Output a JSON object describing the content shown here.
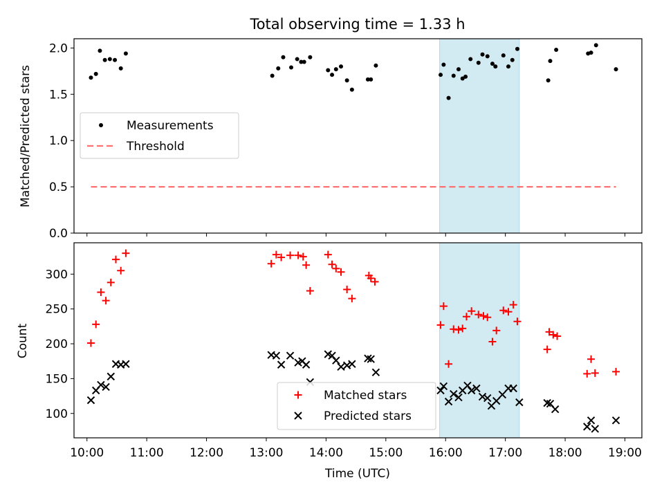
{
  "chart_data": [
    {
      "type": "scatter",
      "title": "Total observing time = 1.33 h",
      "ylabel": "Matched/Predicted stars",
      "xlabel": "",
      "ylim": [
        0,
        2.1
      ],
      "xlim": [
        "09:47",
        "19:17"
      ],
      "yticks": [
        "0.0",
        "0.5",
        "1.0",
        "1.5",
        "2.0"
      ],
      "grid": false,
      "legend_position": "center-left",
      "shaded_interval": [
        "15:54",
        "17:14"
      ],
      "shade_color": "#add8e6",
      "series": [
        {
          "name": "Measurements",
          "marker": "dot",
          "color": "#000000",
          "points": [
            [
              "10:04",
              1.68
            ],
            [
              "10:09",
              1.72
            ],
            [
              "10:13",
              1.97
            ],
            [
              "10:18",
              1.87
            ],
            [
              "10:23",
              1.88
            ],
            [
              "10:28",
              1.87
            ],
            [
              "10:34",
              1.78
            ],
            [
              "10:39",
              1.94
            ],
            [
              "13:06",
              1.7
            ],
            [
              "13:12",
              1.78
            ],
            [
              "13:17",
              1.9
            ],
            [
              "13:25",
              1.79
            ],
            [
              "13:31",
              1.88
            ],
            [
              "13:35",
              1.85
            ],
            [
              "13:38",
              1.85
            ],
            [
              "13:44",
              1.9
            ],
            [
              "14:02",
              1.76
            ],
            [
              "14:06",
              1.71
            ],
            [
              "14:10",
              1.77
            ],
            [
              "14:15",
              1.8
            ],
            [
              "14:21",
              1.65
            ],
            [
              "14:26",
              1.55
            ],
            [
              "14:42",
              1.66
            ],
            [
              "14:45",
              1.66
            ],
            [
              "14:50",
              1.81
            ],
            [
              "15:55",
              1.71
            ],
            [
              "15:58",
              1.82
            ],
            [
              "16:03",
              1.46
            ],
            [
              "16:08",
              1.7
            ],
            [
              "16:13",
              1.77
            ],
            [
              "16:17",
              1.67
            ],
            [
              "16:20",
              1.69
            ],
            [
              "16:25",
              1.88
            ],
            [
              "16:33",
              1.84
            ],
            [
              "16:37",
              1.93
            ],
            [
              "16:42",
              1.91
            ],
            [
              "16:47",
              1.83
            ],
            [
              "16:50",
              1.8
            ],
            [
              "16:58",
              1.92
            ],
            [
              "17:03",
              1.8
            ],
            [
              "17:07",
              1.87
            ],
            [
              "17:12",
              1.99
            ],
            [
              "17:43",
              1.65
            ],
            [
              "17:45",
              1.86
            ],
            [
              "17:51",
              1.98
            ],
            [
              "18:23",
              1.94
            ],
            [
              "18:26",
              1.95
            ],
            [
              "18:31",
              2.03
            ],
            [
              "18:51",
              1.77
            ]
          ]
        },
        {
          "name": "Threshold",
          "type": "line",
          "style": "dashed",
          "color": "#ff7070",
          "x": [
            "10:04",
            "18:51"
          ],
          "y": [
            0.5,
            0.5
          ]
        }
      ]
    },
    {
      "type": "scatter",
      "title": "",
      "ylabel": "Count",
      "xlabel": "Time (UTC)",
      "ylim": [
        65,
        345
      ],
      "xlim": [
        "09:47",
        "19:17"
      ],
      "yticks": [
        "100",
        "150",
        "200",
        "250",
        "300"
      ],
      "xticks": [
        "10:00",
        "11:00",
        "12:00",
        "13:00",
        "14:00",
        "15:00",
        "16:00",
        "17:00",
        "18:00",
        "19:00"
      ],
      "grid": false,
      "legend_position": "bottom-center",
      "shaded_interval": [
        "15:54",
        "17:14"
      ],
      "shade_color": "#add8e6",
      "series": [
        {
          "name": "Matched stars",
          "marker": "plus",
          "color": "#ff0000",
          "points": [
            [
              "10:04",
              201
            ],
            [
              "10:09",
              228
            ],
            [
              "10:14",
              274
            ],
            [
              "10:19",
              262
            ],
            [
              "10:24",
              288
            ],
            [
              "10:29",
              321
            ],
            [
              "10:34",
              305
            ],
            [
              "10:39",
              330
            ],
            [
              "13:05",
              315
            ],
            [
              "13:10",
              328
            ],
            [
              "13:15",
              324
            ],
            [
              "13:24",
              327
            ],
            [
              "13:32",
              327
            ],
            [
              "13:37",
              325
            ],
            [
              "13:40",
              313
            ],
            [
              "13:44",
              276
            ],
            [
              "14:02",
              328
            ],
            [
              "14:06",
              314
            ],
            [
              "14:10",
              308
            ],
            [
              "14:15",
              303
            ],
            [
              "14:21",
              278
            ],
            [
              "14:26",
              265
            ],
            [
              "14:43",
              298
            ],
            [
              "14:45",
              294
            ],
            [
              "14:49",
              289
            ],
            [
              "15:55",
              227
            ],
            [
              "15:58",
              254
            ],
            [
              "16:03",
              171
            ],
            [
              "16:08",
              221
            ],
            [
              "16:13",
              220
            ],
            [
              "16:17",
              222
            ],
            [
              "16:21",
              239
            ],
            [
              "16:26",
              247
            ],
            [
              "16:33",
              242
            ],
            [
              "16:38",
              240
            ],
            [
              "16:42",
              238
            ],
            [
              "16:47",
              203
            ],
            [
              "16:51",
              219
            ],
            [
              "16:58",
              248
            ],
            [
              "17:03",
              246
            ],
            [
              "17:08",
              256
            ],
            [
              "17:12",
              232
            ],
            [
              "17:42",
              192
            ],
            [
              "17:44",
              217
            ],
            [
              "17:48",
              213
            ],
            [
              "17:52",
              211
            ],
            [
              "18:22",
              157
            ],
            [
              "18:26",
              178
            ],
            [
              "18:30",
              158
            ],
            [
              "18:51",
              160
            ]
          ]
        },
        {
          "name": "Predicted stars",
          "marker": "x",
          "color": "#000000",
          "points": [
            [
              "10:04",
              119
            ],
            [
              "10:09",
              133
            ],
            [
              "10:14",
              141
            ],
            [
              "10:19",
              138
            ],
            [
              "10:24",
              153
            ],
            [
              "10:29",
              171
            ],
            [
              "10:34",
              170
            ],
            [
              "10:39",
              171
            ],
            [
              "13:05",
              184
            ],
            [
              "13:10",
              183
            ],
            [
              "13:15",
              170
            ],
            [
              "13:24",
              183
            ],
            [
              "13:32",
              173
            ],
            [
              "13:36",
              175
            ],
            [
              "13:40",
              170
            ],
            [
              "13:44",
              145
            ],
            [
              "14:02",
              185
            ],
            [
              "14:06",
              183
            ],
            [
              "14:10",
              176
            ],
            [
              "14:15",
              167
            ],
            [
              "14:21",
              169
            ],
            [
              "14:26",
              171
            ],
            [
              "14:42",
              179
            ],
            [
              "14:45",
              178
            ],
            [
              "14:50",
              159
            ],
            [
              "15:55",
              133
            ],
            [
              "15:58",
              139
            ],
            [
              "16:03",
              117
            ],
            [
              "16:08",
              128
            ],
            [
              "16:13",
              123
            ],
            [
              "16:17",
              133
            ],
            [
              "16:22",
              140
            ],
            [
              "16:26",
              133
            ],
            [
              "16:31",
              136
            ],
            [
              "16:37",
              124
            ],
            [
              "16:42",
              122
            ],
            [
              "16:46",
              111
            ],
            [
              "16:51",
              118
            ],
            [
              "16:57",
              127
            ],
            [
              "17:03",
              136
            ],
            [
              "17:08",
              136
            ],
            [
              "17:14",
              116
            ],
            [
              "17:42",
              115
            ],
            [
              "17:45",
              114
            ],
            [
              "17:50",
              106
            ],
            [
              "18:22",
              81
            ],
            [
              "18:26",
              90
            ],
            [
              "18:30",
              78
            ],
            [
              "18:51",
              90
            ]
          ]
        }
      ]
    }
  ]
}
